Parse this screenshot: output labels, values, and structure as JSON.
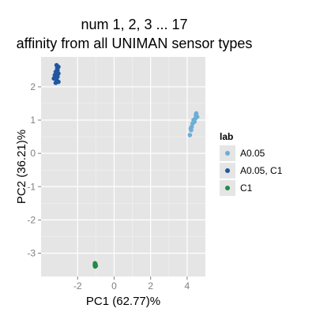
{
  "chart_data": {
    "type": "scatter",
    "title_lines": [
      "num 1, 2, 3 ... 17",
      "affinity from all UNIMAN sensor types"
    ],
    "xlabel": "PC1 (62.77)%",
    "ylabel": "PC2 (36.21)%",
    "xlim": [
      -4.0,
      5.0
    ],
    "ylim": [
      -3.7,
      2.9
    ],
    "x_ticks": [
      -2,
      0,
      2,
      4
    ],
    "y_ticks": [
      -3,
      -2,
      -1,
      0,
      1,
      2
    ],
    "grid": true,
    "legend": {
      "title": "lab",
      "position": "right"
    },
    "series": [
      {
        "name": "A0.05",
        "color": "#6baed6",
        "points": [
          [
            4.5,
            1.2
          ],
          [
            4.55,
            1.1
          ],
          [
            4.45,
            1.05
          ],
          [
            4.4,
            0.95
          ],
          [
            4.3,
            0.9
          ],
          [
            4.25,
            0.8
          ],
          [
            4.2,
            0.75
          ],
          [
            4.22,
            0.7
          ],
          [
            4.15,
            0.55
          ],
          [
            4.35,
            1.0
          ],
          [
            4.48,
            1.15
          ]
        ]
      },
      {
        "name": "A0.05, C1",
        "color": "#2156a0",
        "points": [
          [
            -3.15,
            2.65
          ],
          [
            -3.05,
            2.6
          ],
          [
            -3.1,
            2.5
          ],
          [
            -3.2,
            2.45
          ],
          [
            -3.05,
            2.4
          ],
          [
            -3.25,
            2.35
          ],
          [
            -3.1,
            2.3
          ],
          [
            -3.3,
            2.25
          ],
          [
            -3.15,
            2.2
          ],
          [
            -3.05,
            2.15
          ],
          [
            -3.2,
            2.12
          ],
          [
            -3.12,
            2.55
          ]
        ]
      },
      {
        "name": "C1",
        "color": "#238b45",
        "points": [
          [
            -1.05,
            -3.3
          ],
          [
            -1.02,
            -3.33
          ],
          [
            -1.06,
            -3.36
          ],
          [
            -1.0,
            -3.38
          ],
          [
            -1.04,
            -3.4
          ],
          [
            -1.03,
            -3.35
          ]
        ]
      }
    ]
  }
}
